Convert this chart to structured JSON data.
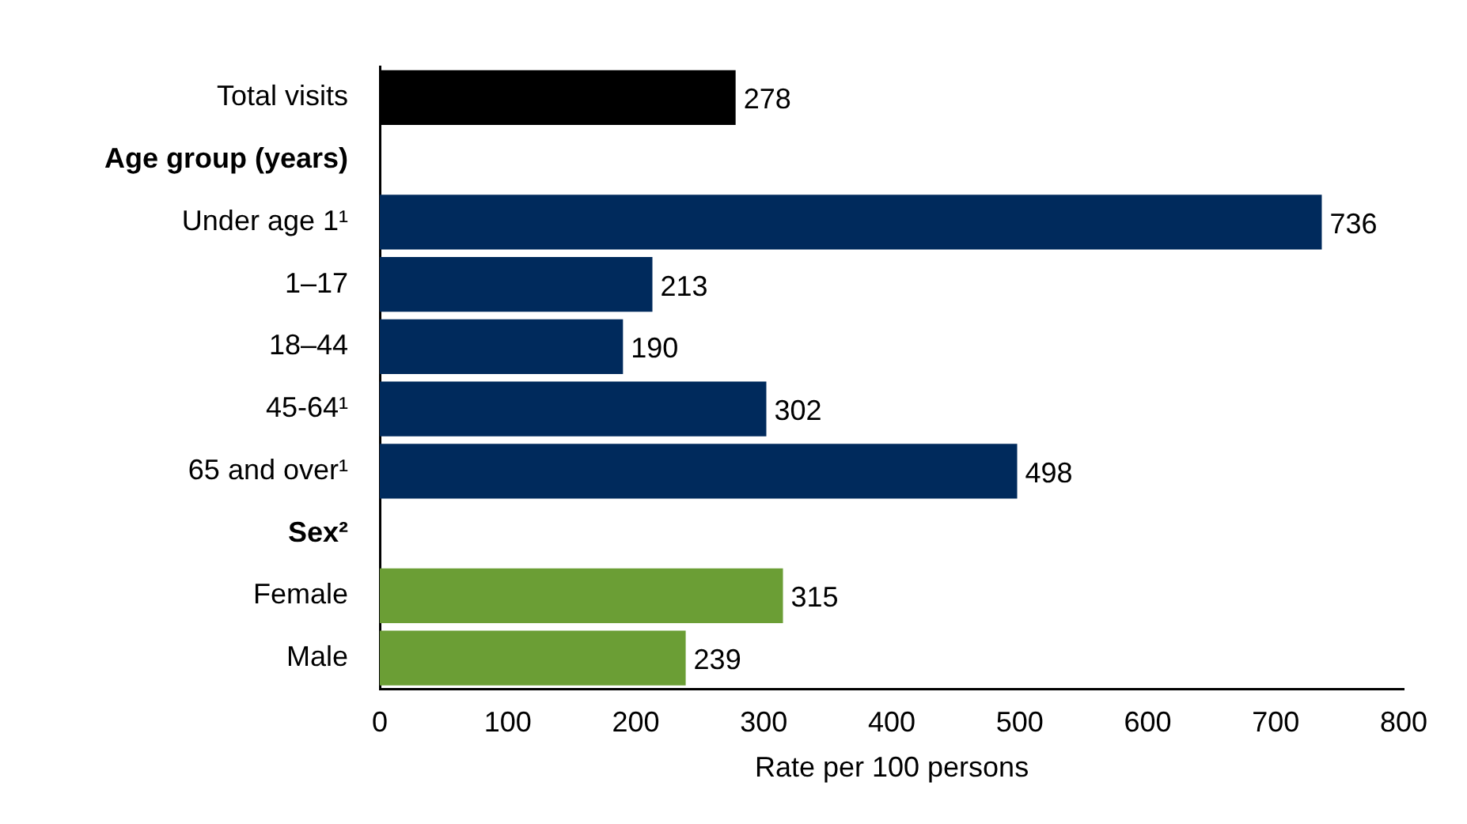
{
  "chart_data": {
    "type": "bar",
    "orientation": "horizontal",
    "xlabel": "Rate per 100 persons",
    "categories": [
      "Total visits",
      "Age group (years)",
      "Under age 1¹",
      "1–17",
      "18–44",
      "45-64¹",
      "65 and over¹",
      "Sex²",
      "Female",
      "Male"
    ],
    "values": [
      278,
      null,
      736,
      213,
      190,
      302,
      498,
      null,
      315,
      239
    ],
    "colors": [
      "#000000",
      null,
      "#002a5c",
      "#002a5c",
      "#002a5c",
      "#002a5c",
      "#002a5c",
      null,
      "#6b9e35",
      "#6b9e35"
    ],
    "xlim": [
      0,
      800
    ],
    "xticks": [
      0,
      100,
      200,
      300,
      400,
      500,
      600,
      700,
      800
    ],
    "data_labels": true,
    "grid": false,
    "legend": false
  }
}
